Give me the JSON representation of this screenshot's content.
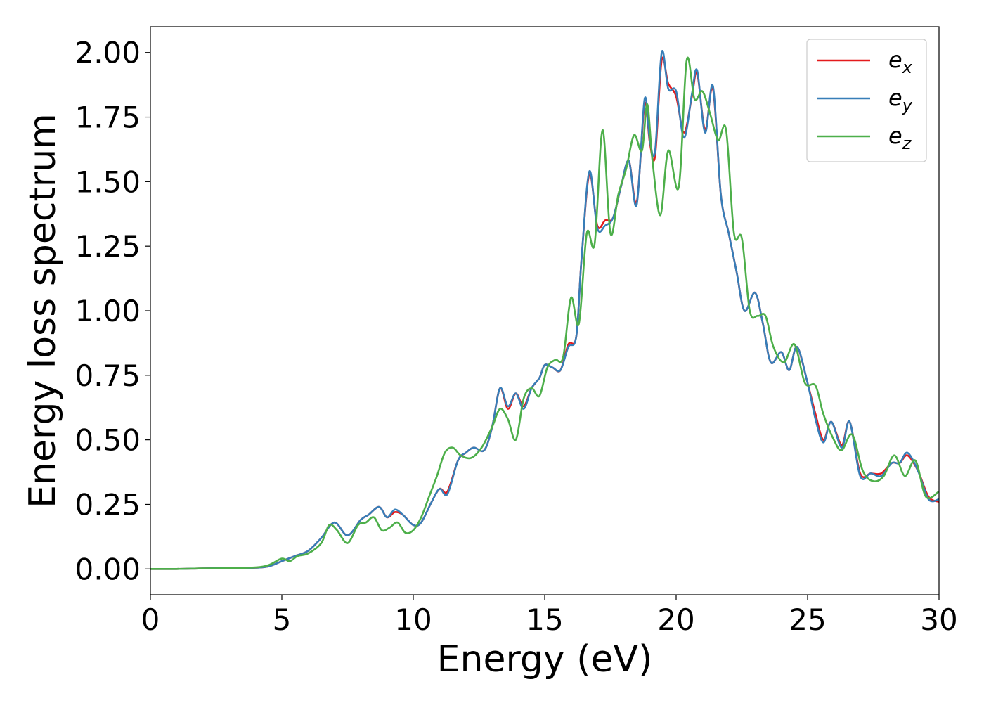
{
  "chart_data": {
    "type": "line",
    "xlabel": "Energy (eV)",
    "ylabel": "Energy loss spectrum",
    "xlim": [
      0,
      30
    ],
    "ylim": [
      -0.1,
      2.1
    ],
    "xticks": [
      0,
      5,
      10,
      15,
      20,
      25,
      30
    ],
    "xtick_labels": [
      "0",
      "5",
      "10",
      "15",
      "20",
      "25",
      "30"
    ],
    "yticks": [
      0,
      0.25,
      0.5,
      0.75,
      1.0,
      1.25,
      1.5,
      1.75,
      2.0
    ],
    "ytick_labels": [
      "0.00",
      "0.25",
      "0.50",
      "0.75",
      "1.00",
      "1.25",
      "1.50",
      "1.75",
      "2.00"
    ],
    "grid": false,
    "legend_position": "top-right",
    "series": [
      {
        "name": "e_x",
        "label_main": "e",
        "label_sub": "x",
        "color": "#e41a1c",
        "x": [
          0,
          1,
          2,
          3,
          4,
          4.5,
          5,
          5.5,
          6,
          6.5,
          7,
          7.5,
          8,
          8.3,
          8.7,
          9,
          9.3,
          9.6,
          10,
          10.3,
          10.7,
          11,
          11.3,
          11.7,
          12,
          12.3,
          12.7,
          13,
          13.3,
          13.6,
          13.9,
          14.2,
          14.5,
          14.8,
          15,
          15.3,
          15.6,
          15.9,
          16.2,
          16.4,
          16.7,
          17,
          17.3,
          17.6,
          17.9,
          18.2,
          18.5,
          18.8,
          19.0,
          19.2,
          19.45,
          19.7,
          20.0,
          20.3,
          20.6,
          20.8,
          21.1,
          21.4,
          21.7,
          22.0,
          22.3,
          22.6,
          23.0,
          23.3,
          23.6,
          24.0,
          24.3,
          24.6,
          25.0,
          25.3,
          25.6,
          25.9,
          26.3,
          26.6,
          27.0,
          27.4,
          27.8,
          28.2,
          28.5,
          28.8,
          29.2,
          29.6,
          30
        ],
        "y": [
          0,
          0,
          0.002,
          0.003,
          0.005,
          0.01,
          0.03,
          0.05,
          0.07,
          0.12,
          0.18,
          0.13,
          0.19,
          0.21,
          0.24,
          0.2,
          0.22,
          0.21,
          0.17,
          0.18,
          0.26,
          0.31,
          0.3,
          0.42,
          0.45,
          0.47,
          0.46,
          0.55,
          0.7,
          0.62,
          0.68,
          0.63,
          0.7,
          0.74,
          0.79,
          0.78,
          0.77,
          0.87,
          0.9,
          1.2,
          1.53,
          1.33,
          1.35,
          1.36,
          1.48,
          1.58,
          1.42,
          1.8,
          1.65,
          1.6,
          1.97,
          1.88,
          1.83,
          1.69,
          1.83,
          1.92,
          1.7,
          1.86,
          1.45,
          1.3,
          1.15,
          1.0,
          1.07,
          0.95,
          0.8,
          0.84,
          0.77,
          0.86,
          0.72,
          0.6,
          0.5,
          0.57,
          0.48,
          0.57,
          0.37,
          0.37,
          0.37,
          0.41,
          0.41,
          0.44,
          0.38,
          0.28,
          0.26
        ]
      },
      {
        "name": "e_y",
        "label_main": "e",
        "label_sub": "y",
        "color": "#377eb8",
        "x": [
          0,
          1,
          2,
          3,
          4,
          4.5,
          5,
          5.5,
          6,
          6.5,
          7,
          7.5,
          8,
          8.3,
          8.7,
          9,
          9.3,
          9.6,
          10,
          10.3,
          10.7,
          11,
          11.3,
          11.7,
          12,
          12.3,
          12.7,
          13,
          13.3,
          13.6,
          13.9,
          14.2,
          14.5,
          14.8,
          15,
          15.3,
          15.6,
          15.9,
          16.2,
          16.4,
          16.7,
          17,
          17.3,
          17.6,
          17.9,
          18.2,
          18.5,
          18.8,
          19.0,
          19.2,
          19.45,
          19.7,
          20.0,
          20.3,
          20.6,
          20.8,
          21.1,
          21.4,
          21.7,
          22.0,
          22.3,
          22.6,
          23.0,
          23.3,
          23.6,
          24.0,
          24.3,
          24.6,
          25.0,
          25.3,
          25.6,
          25.9,
          26.3,
          26.6,
          27.0,
          27.4,
          27.8,
          28.2,
          28.5,
          28.8,
          29.2,
          29.6,
          30
        ],
        "y": [
          0,
          0,
          0.002,
          0.003,
          0.005,
          0.01,
          0.03,
          0.05,
          0.07,
          0.12,
          0.18,
          0.13,
          0.19,
          0.21,
          0.24,
          0.2,
          0.23,
          0.21,
          0.17,
          0.18,
          0.26,
          0.31,
          0.29,
          0.42,
          0.45,
          0.47,
          0.46,
          0.55,
          0.7,
          0.63,
          0.68,
          0.62,
          0.7,
          0.74,
          0.79,
          0.78,
          0.77,
          0.86,
          0.9,
          1.2,
          1.54,
          1.32,
          1.33,
          1.36,
          1.48,
          1.58,
          1.41,
          1.82,
          1.66,
          1.62,
          2.0,
          1.86,
          1.85,
          1.67,
          1.84,
          1.93,
          1.69,
          1.87,
          1.45,
          1.3,
          1.15,
          1.0,
          1.07,
          0.95,
          0.8,
          0.84,
          0.77,
          0.86,
          0.72,
          0.58,
          0.49,
          0.57,
          0.47,
          0.57,
          0.36,
          0.37,
          0.36,
          0.41,
          0.41,
          0.45,
          0.38,
          0.27,
          0.27
        ]
      },
      {
        "name": "e_z",
        "label_main": "e",
        "label_sub": "z",
        "color": "#4daf4a",
        "x": [
          0,
          1,
          2,
          3,
          4,
          4.5,
          5,
          5.3,
          5.6,
          6,
          6.5,
          6.8,
          7.1,
          7.5,
          7.9,
          8.2,
          8.5,
          8.8,
          9.1,
          9.4,
          9.7,
          10,
          10.3,
          10.6,
          10.9,
          11.2,
          11.5,
          11.8,
          12.2,
          12.6,
          13,
          13.3,
          13.6,
          13.9,
          14.2,
          14.5,
          14.8,
          15.1,
          15.4,
          15.7,
          16.0,
          16.3,
          16.6,
          16.9,
          17.2,
          17.5,
          17.8,
          18.1,
          18.4,
          18.7,
          18.9,
          19.1,
          19.4,
          19.7,
          20.1,
          20.4,
          20.7,
          21.0,
          21.3,
          21.6,
          21.9,
          22.2,
          22.5,
          22.8,
          23.1,
          23.4,
          23.7,
          24.1,
          24.5,
          24.9,
          25.3,
          25.6,
          26.0,
          26.3,
          26.7,
          27.1,
          27.5,
          27.9,
          28.3,
          28.7,
          29.1,
          29.5,
          30
        ],
        "y": [
          0,
          0,
          0.002,
          0.003,
          0.006,
          0.015,
          0.04,
          0.03,
          0.05,
          0.06,
          0.1,
          0.17,
          0.15,
          0.1,
          0.17,
          0.18,
          0.2,
          0.15,
          0.16,
          0.18,
          0.14,
          0.15,
          0.2,
          0.28,
          0.36,
          0.45,
          0.47,
          0.44,
          0.43,
          0.47,
          0.55,
          0.62,
          0.58,
          0.5,
          0.66,
          0.7,
          0.67,
          0.78,
          0.81,
          0.82,
          1.05,
          0.95,
          1.3,
          1.26,
          1.7,
          1.3,
          1.45,
          1.55,
          1.68,
          1.62,
          1.8,
          1.58,
          1.37,
          1.62,
          1.48,
          1.97,
          1.82,
          1.85,
          1.76,
          1.66,
          1.7,
          1.3,
          1.28,
          1.0,
          0.98,
          0.98,
          0.86,
          0.8,
          0.87,
          0.72,
          0.71,
          0.6,
          0.5,
          0.46,
          0.52,
          0.38,
          0.34,
          0.36,
          0.44,
          0.36,
          0.42,
          0.28,
          0.3
        ]
      }
    ]
  }
}
